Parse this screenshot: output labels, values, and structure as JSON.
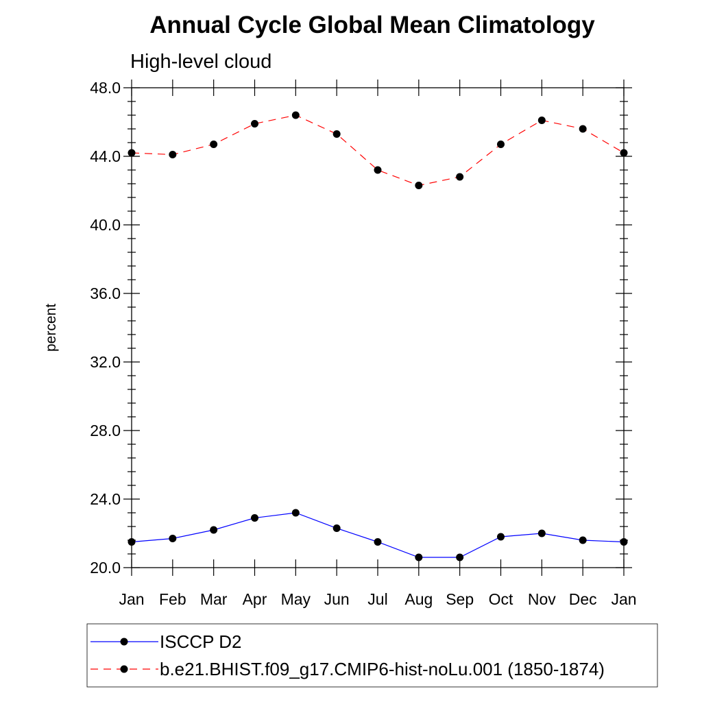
{
  "chart_data": {
    "type": "line",
    "title": "Annual Cycle Global Mean Climatology",
    "subtitle": "High-level cloud",
    "xlabel": "",
    "ylabel": "percent",
    "categories": [
      "Jan",
      "Feb",
      "Mar",
      "Apr",
      "May",
      "Jun",
      "Jul",
      "Aug",
      "Sep",
      "Oct",
      "Nov",
      "Dec",
      "Jan"
    ],
    "ylim": [
      20.0,
      48.0
    ],
    "yticks": [
      "20.0",
      "24.0",
      "28.0",
      "32.0",
      "36.0",
      "40.0",
      "44.0",
      "48.0"
    ],
    "grid": false,
    "legend_position": "bottom",
    "series": [
      {
        "name": "ISCCP D2",
        "color": "#0000ff",
        "style": "solid",
        "values": [
          21.5,
          21.7,
          22.2,
          22.9,
          23.2,
          22.3,
          21.5,
          20.6,
          20.6,
          21.8,
          22.0,
          21.6,
          21.5
        ]
      },
      {
        "name": "b.e21.BHIST.f09_g17.CMIP6-hist-noLu.001 (1850-1874)",
        "color": "#ff0000",
        "style": "dashed",
        "values": [
          44.2,
          44.1,
          44.7,
          45.9,
          46.4,
          45.3,
          43.2,
          42.3,
          42.8,
          44.7,
          46.1,
          45.6,
          44.2
        ]
      }
    ]
  }
}
